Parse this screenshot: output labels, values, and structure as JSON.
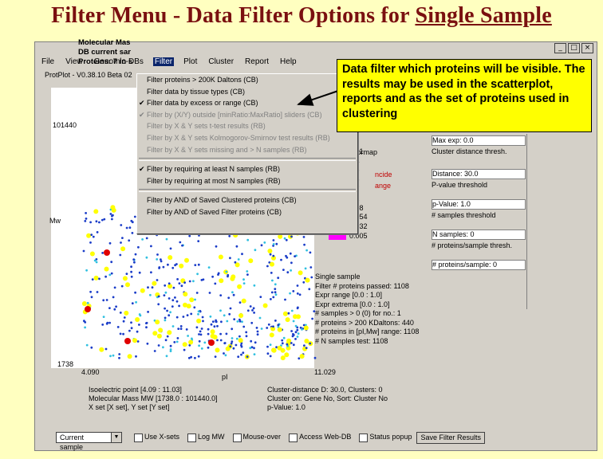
{
  "slide": {
    "title_prefix": "Filter Menu - Data Filter Options for ",
    "title_underlined": "Single Sample"
  },
  "window": {
    "minimize": "_",
    "maximize": "□",
    "close": "×"
  },
  "menubar": [
    {
      "label": "File"
    },
    {
      "label": "View"
    },
    {
      "label": "Genomic-DBs"
    },
    {
      "label": "Filter",
      "active": true
    },
    {
      "label": "Plot"
    },
    {
      "label": "Cluster"
    },
    {
      "label": "Report"
    },
    {
      "label": "Help"
    }
  ],
  "version": "ProtPlot - V0.38.10 Beta 02",
  "plot_info": {
    "line1": "Molecular Mas",
    "line2": "DB current sar",
    "line3": "Proteins: 7 in s"
  },
  "axes": {
    "ytop": "101440",
    "ybot": "1738",
    "ylabel": "Mw",
    "xleft": "4.090",
    "xright": "11.029",
    "xlabel": "pI"
  },
  "filter_menu": [
    {
      "label": "Filter proteins > 200K Daltons (CB)",
      "checked": false,
      "disabled": false
    },
    {
      "label": "Filter data by tissue types (CB)",
      "checked": false,
      "disabled": false
    },
    {
      "label": "Filter data by excess or range (CB)",
      "checked": true,
      "disabled": false
    },
    {
      "label": "Filter by (X/Y) outside [minRatio:MaxRatio] sliders (CB)",
      "checked": true,
      "disabled": true
    },
    {
      "label": "Filter by X & Y sets t-test results (RB)",
      "checked": false,
      "disabled": true
    },
    {
      "label": "Filter by X & Y sets Kolmogorov-Smirnov test results (RB)",
      "checked": false,
      "disabled": true
    },
    {
      "label": "Filter by X & Y sets missing and > N samples (RB)",
      "checked": false,
      "disabled": true
    },
    {
      "sep": true
    },
    {
      "label": "Filter by requiring at least N samples (RB)",
      "checked": true,
      "disabled": false
    },
    {
      "label": "Filter by requiring at most N samples (RB)",
      "checked": false,
      "disabled": false
    },
    {
      "sep": true
    },
    {
      "label": "Filter by AND of Saved Clustered proteins (CB)",
      "checked": false,
      "disabled": false
    },
    {
      "label": "Filter by AND of Saved Filter proteins (CB)",
      "checked": false,
      "disabled": false
    }
  ],
  "callout": "Data filter which proteins will be visible. The results may be used in the scatterplot, reports and as the set of proteins used in clustering",
  "colormap": {
    "header": "Colormap",
    "red1": "ncide",
    "red2": "ange",
    "rows": [
      {
        "value": ".721",
        "color": "#ffffff"
      },
      {
        "value": ".14",
        "color": "#ffffff"
      },
      {
        "value": ".65",
        "color": "#ffffff"
      },
      {
        "value": ".45",
        "color": "#ffffff"
      },
      {
        "value": ".67",
        "color": "#ffffff"
      },
      {
        "value": "0.1",
        "color": "#ffffff"
      },
      {
        "value": "0.08",
        "color": "#00b0ff"
      },
      {
        "value": "0.054",
        "color": "#0000ff"
      },
      {
        "value": "0.032",
        "color": "#8000c0"
      },
      {
        "value": "0.005",
        "color": "#ff00ff"
      }
    ]
  },
  "right_panel": {
    "maxexp": "Max exp: 0.0",
    "clust_thresh": "Cluster distance thresh.",
    "distance": "Distance: 30.0",
    "pval_thresh": "P-value threshold",
    "pval": "p-Value: 1.0",
    "samples_thresh": "# samples threshold",
    "nsamples": "N samples: 0",
    "proteins_thresh": "# proteins/sample thresh.",
    "proteins_sample": "# proteins/sample: 0"
  },
  "stats": [
    "Single sample",
    "Filter # proteins passed: 1108",
    "Expr range [0.0 : 1.0]",
    "Expr extrema [0.0 : 1.0]",
    "# samples > 0 (0) for no.: 1",
    "# proteins > 200 KDaltons: 440",
    "# proteins in [pI,Mw] range: 1108",
    "# N samples test: 1108"
  ],
  "bottom_info_left": [
    "Isoelectric point [4.09 : 11.03]",
    "Molecular Mass MW [1738.0 : 101440.0]",
    "X set [X set], Y set [Y set]"
  ],
  "bottom_info_right": [
    "Cluster-distance D: 30.0, Clusters: 0",
    "Cluster on: Gene No, Sort: Cluster No",
    "p-Value: 1.0"
  ],
  "bottombar": {
    "select": "Current sample",
    "checkboxes": [
      "Use X-sets",
      "Log MW",
      "Mouse-over",
      "Access Web-DB",
      "Status popup"
    ],
    "save_button": "Save Filter Results"
  }
}
